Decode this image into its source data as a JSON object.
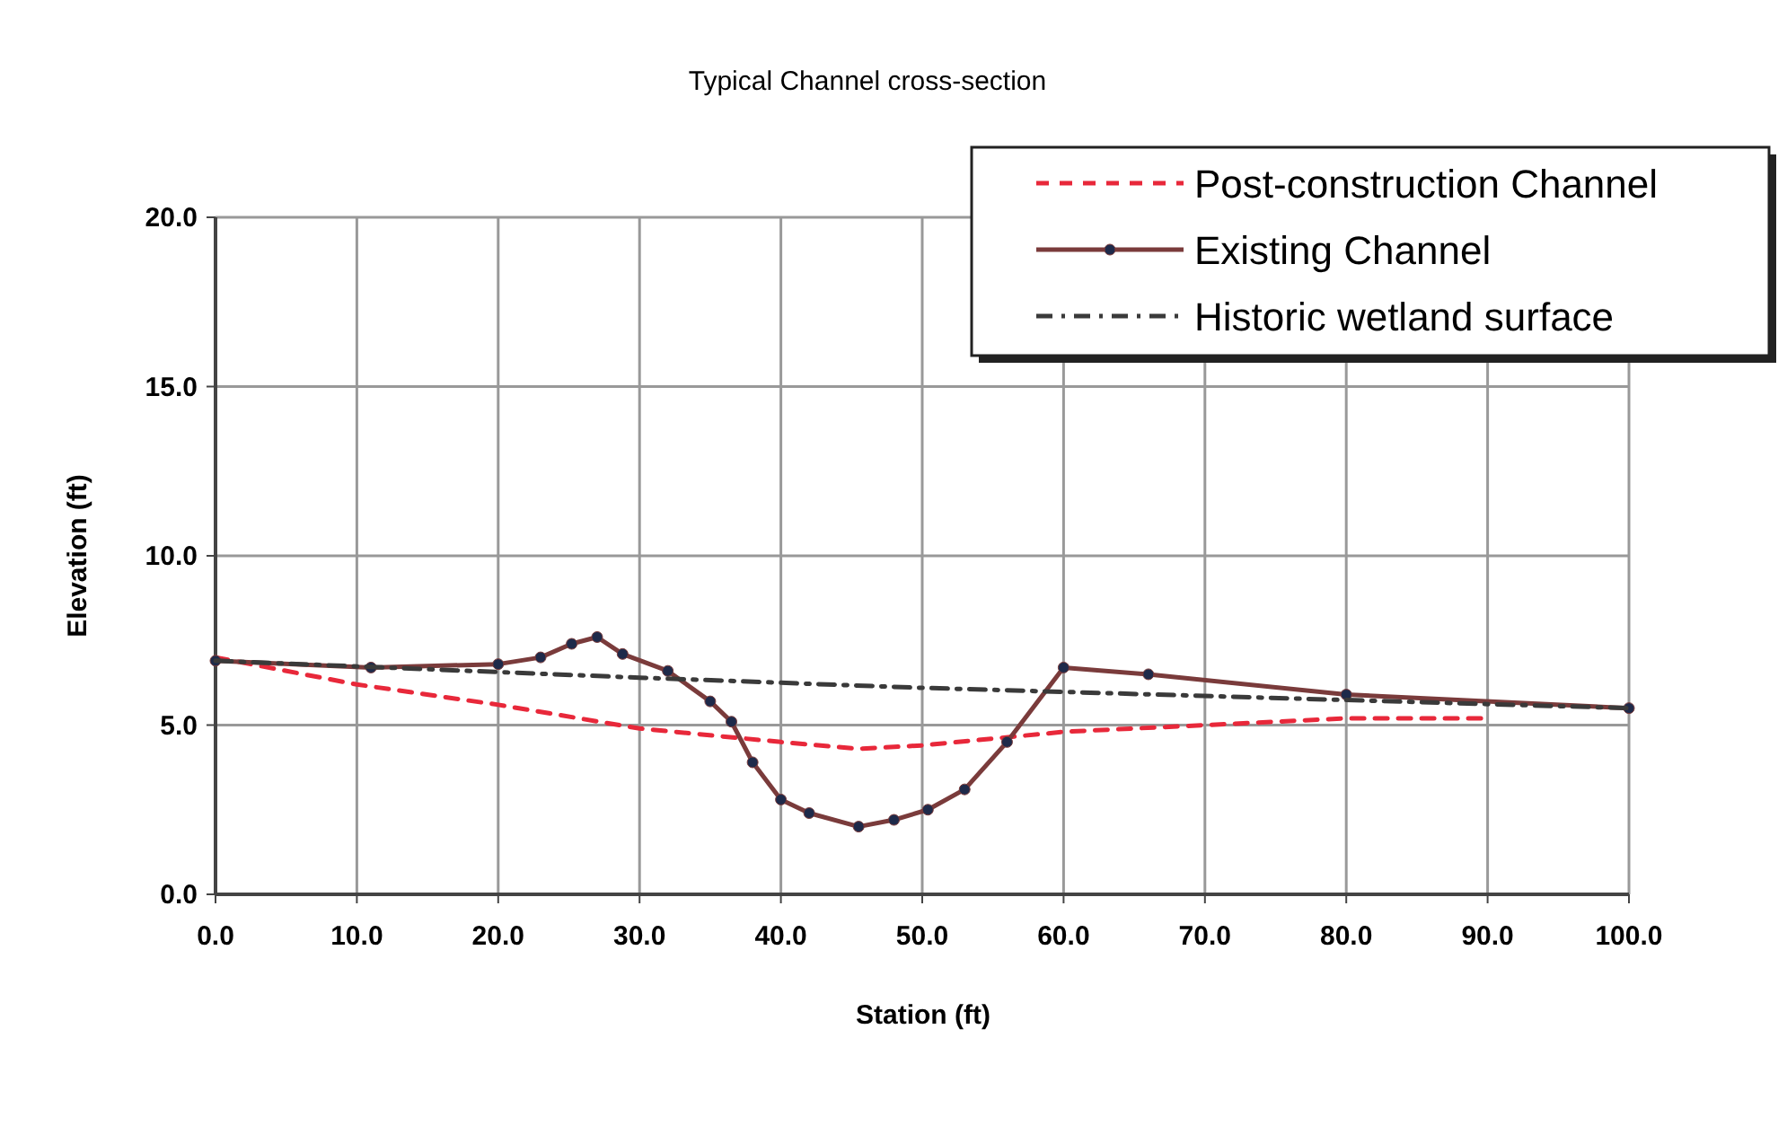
{
  "chart_data": {
    "type": "line",
    "title": "Typical Channel cross-section",
    "xlabel": "Station (ft)",
    "ylabel": "Elevation (ft)",
    "xlim": [
      0,
      100
    ],
    "xticks": [
      {
        "value": 0,
        "label": "0.0"
      },
      {
        "value": 10,
        "label": "10.0"
      },
      {
        "value": 20,
        "label": "20.0"
      },
      {
        "value": 30,
        "label": "30.0"
      },
      {
        "value": 40,
        "label": "40.0"
      },
      {
        "value": 50,
        "label": "50.0"
      },
      {
        "value": 60,
        "label": "60.0"
      },
      {
        "value": 70,
        "label": "70.0"
      },
      {
        "value": 80,
        "label": "80.0"
      },
      {
        "value": 90,
        "label": "90.0"
      },
      {
        "value": 100,
        "label": "100.0"
      }
    ],
    "ylim": [
      0,
      20
    ],
    "yticks": [
      {
        "value": 0,
        "label": "0.0"
      },
      {
        "value": 5,
        "label": "5.0"
      },
      {
        "value": 10,
        "label": "10.0"
      },
      {
        "value": 15,
        "label": "15.0"
      },
      {
        "value": 20,
        "label": "20.0"
      }
    ],
    "grid": true,
    "legend": "top right",
    "series": [
      {
        "name": "Post-construction Channel",
        "color": "#e8283a",
        "line_style": "dashed",
        "marker": "none",
        "x": [
          0,
          10,
          20,
          30,
          40,
          45.5,
          50,
          60,
          70,
          80,
          90
        ],
        "values": [
          7.0,
          6.2,
          5.6,
          4.9,
          4.5,
          4.3,
          4.4,
          4.8,
          5.0,
          5.2,
          5.2
        ]
      },
      {
        "name": "Existing Channel",
        "color": "#7a3b3b",
        "line_style": "solid",
        "marker": "circle",
        "x": [
          0,
          11,
          20,
          23,
          25.2,
          27,
          28.8,
          32,
          35,
          36.5,
          38,
          40,
          42,
          45.5,
          48,
          50.4,
          53,
          56,
          60,
          66,
          80,
          100
        ],
        "values": [
          6.9,
          6.7,
          6.8,
          7.0,
          7.4,
          7.6,
          7.1,
          6.6,
          5.7,
          5.1,
          3.9,
          2.8,
          2.4,
          2.0,
          2.2,
          2.5,
          3.1,
          4.5,
          6.7,
          6.5,
          5.9,
          5.5
        ]
      },
      {
        "name": "Historic wetland surface",
        "color": "#3a3a3a",
        "line_style": "dashdot",
        "marker": "none",
        "x": [
          0,
          30,
          50,
          100
        ],
        "values": [
          6.9,
          6.4,
          6.1,
          5.5
        ]
      }
    ]
  }
}
